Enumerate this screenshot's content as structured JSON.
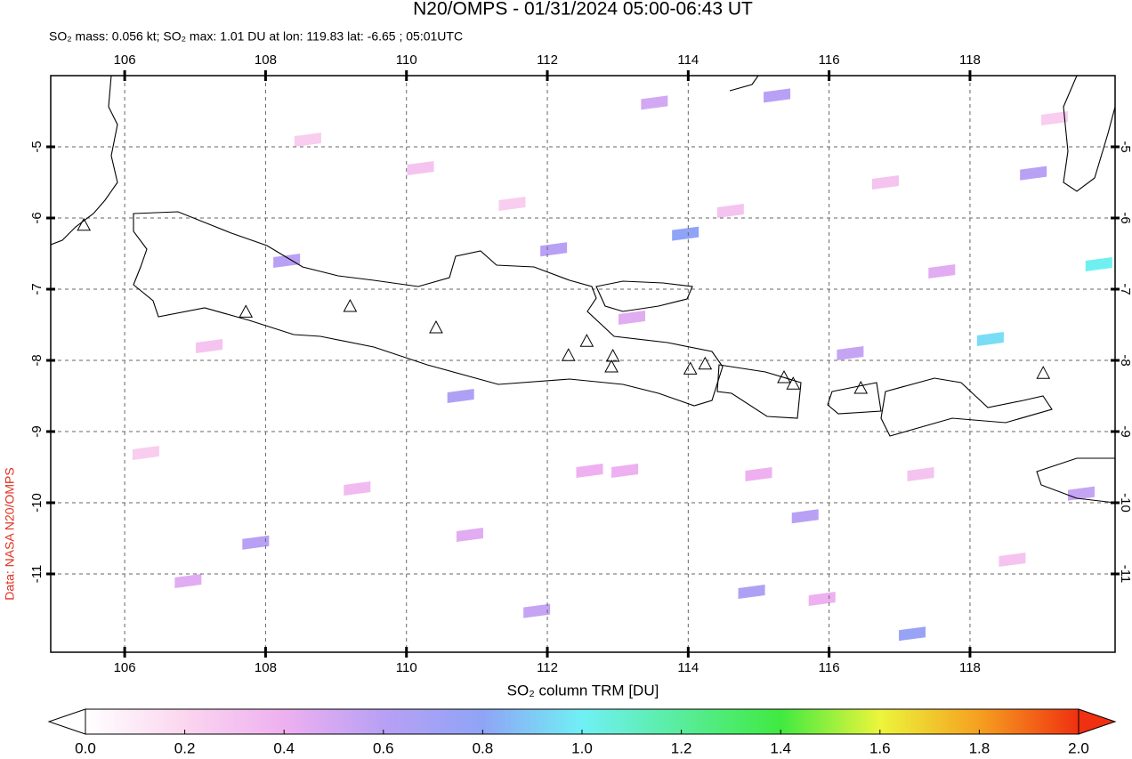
{
  "header": {
    "title": "N20/OMPS - 01/31/2024 05:00-06:43 UT",
    "subtitle": "SO₂ mass: 0.056 kt; SO₂ max: 1.01 DU at lon: 119.83 lat: -6.65 ; 05:01UTC",
    "credit": "Data: NASA N20/OMPS"
  },
  "map": {
    "xlim": [
      104.95,
      120.06
    ],
    "ylim": [
      -12.1,
      -4
    ],
    "xticks": [
      106,
      108,
      110,
      112,
      114,
      116,
      118
    ],
    "yticks": [
      -5,
      -6,
      -7,
      -8,
      -9,
      -10,
      -11
    ],
    "grid": true,
    "pixels": [
      {
        "lon": 119.83,
        "lat": -6.65,
        "value": 1.01
      },
      {
        "lon": 118.29,
        "lat": -7.7,
        "value": 0.95
      },
      {
        "lon": 113.96,
        "lat": -6.22,
        "value": 0.8
      },
      {
        "lon": 117.18,
        "lat": -11.84,
        "value": 0.75
      },
      {
        "lon": 114.9,
        "lat": -11.25,
        "value": 0.65
      },
      {
        "lon": 110.77,
        "lat": -8.5,
        "value": 0.65
      },
      {
        "lon": 108.3,
        "lat": -6.6,
        "value": 0.6
      },
      {
        "lon": 115.66,
        "lat": -10.19,
        "value": 0.6
      },
      {
        "lon": 115.26,
        "lat": -4.28,
        "value": 0.6
      },
      {
        "lon": 112.09,
        "lat": -6.44,
        "value": 0.6
      },
      {
        "lon": 113.52,
        "lat": -4.38,
        "value": 0.5
      },
      {
        "lon": 118.9,
        "lat": -5.37,
        "value": 0.6
      },
      {
        "lon": 119.58,
        "lat": -9.87,
        "value": 0.55
      },
      {
        "lon": 107.86,
        "lat": -10.56,
        "value": 0.6
      },
      {
        "lon": 111.85,
        "lat": -11.52,
        "value": 0.55
      },
      {
        "lon": 116.3,
        "lat": -7.9,
        "value": 0.55
      },
      {
        "lon": 117.6,
        "lat": -6.75,
        "value": 0.45
      },
      {
        "lon": 112.6,
        "lat": -9.55,
        "value": 0.4
      },
      {
        "lon": 113.1,
        "lat": -9.55,
        "value": 0.4
      },
      {
        "lon": 115.0,
        "lat": -9.6,
        "value": 0.4
      },
      {
        "lon": 115.9,
        "lat": -11.35,
        "value": 0.4
      },
      {
        "lon": 106.9,
        "lat": -11.1,
        "value": 0.45
      },
      {
        "lon": 110.9,
        "lat": -10.45,
        "value": 0.45
      },
      {
        "lon": 109.3,
        "lat": -9.8,
        "value": 0.35
      },
      {
        "lon": 107.2,
        "lat": -7.8,
        "value": 0.3
      },
      {
        "lon": 110.2,
        "lat": -5.3,
        "value": 0.3
      },
      {
        "lon": 108.6,
        "lat": -4.9,
        "value": 0.25
      },
      {
        "lon": 116.8,
        "lat": -5.5,
        "value": 0.3
      },
      {
        "lon": 119.2,
        "lat": -4.6,
        "value": 0.25
      },
      {
        "lon": 113.2,
        "lat": -7.4,
        "value": 0.45
      },
      {
        "lon": 106.3,
        "lat": -9.3,
        "value": 0.25
      },
      {
        "lon": 118.6,
        "lat": -10.8,
        "value": 0.3
      },
      {
        "lon": 114.6,
        "lat": -5.9,
        "value": 0.3
      },
      {
        "lon": 111.5,
        "lat": -5.8,
        "value": 0.25
      },
      {
        "lon": 117.3,
        "lat": -9.6,
        "value": 0.3
      }
    ],
    "volcanoes": [
      [
        107.72,
        -7.33
      ],
      [
        109.2,
        -7.25
      ],
      [
        110.42,
        -7.55
      ],
      [
        112.3,
        -7.94
      ],
      [
        112.56,
        -7.74
      ],
      [
        112.93,
        -7.95
      ],
      [
        112.91,
        -8.1
      ],
      [
        114.03,
        -8.13
      ],
      [
        114.24,
        -8.06
      ],
      [
        115.36,
        -8.25
      ],
      [
        115.49,
        -8.34
      ],
      [
        116.45,
        -8.4
      ],
      [
        105.42,
        -6.11
      ],
      [
        119.04,
        -8.19
      ]
    ]
  },
  "colorbar": {
    "label": "SO₂ column TRM [DU]",
    "range": [
      0,
      2
    ],
    "ticks": [
      {
        "value": 0,
        "label": "0.0"
      },
      {
        "value": 0.2,
        "label": "0.2"
      },
      {
        "value": 0.4,
        "label": "0.4"
      },
      {
        "value": 0.6,
        "label": "0.6"
      },
      {
        "value": 0.8,
        "label": "0.8"
      },
      {
        "value": 1,
        "label": "1.0"
      },
      {
        "value": 1.2,
        "label": "1.2"
      },
      {
        "value": 1.4,
        "label": "1.4"
      },
      {
        "value": 1.6,
        "label": "1.6"
      },
      {
        "value": 1.8,
        "label": "1.8"
      },
      {
        "value": 2,
        "label": "2.0"
      }
    ]
  }
}
